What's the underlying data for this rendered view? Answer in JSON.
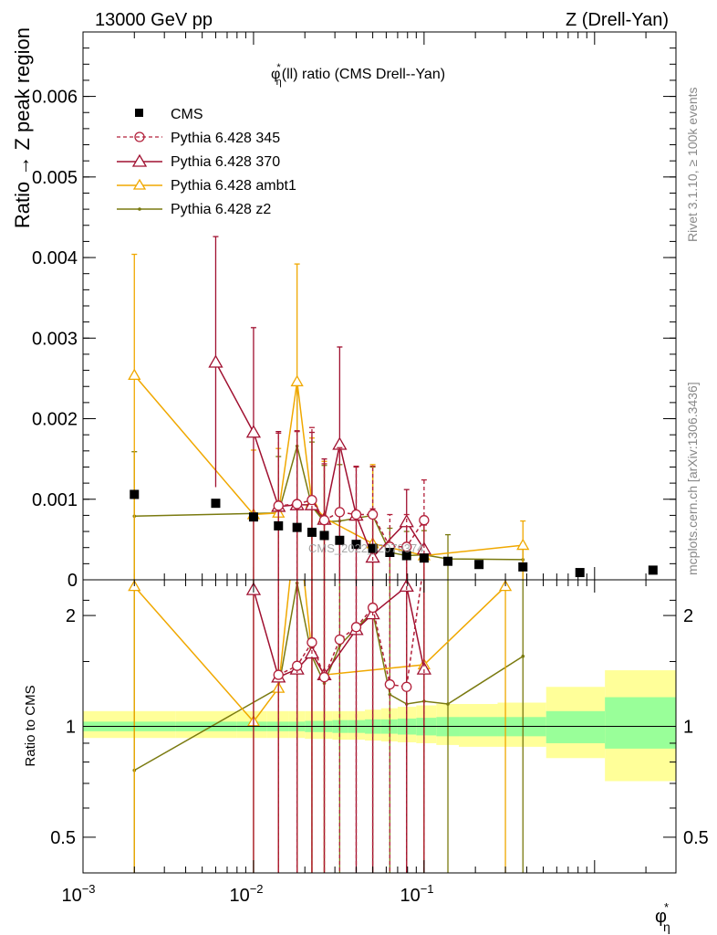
{
  "header": {
    "left": "13000 GeV pp",
    "right": "Z (Drell-Yan)"
  },
  "side_labels": {
    "rivet": "Rivet 3.1.10, ≥ 100k events",
    "mcplots": "mcplots.cern.ch [arXiv:1306.3436]"
  },
  "watermark": "CMS_2022_I2079374",
  "colors": {
    "cms": "#000000",
    "p345": "#b2203a",
    "p370": "#a01030",
    "ambt1": "#f0a800",
    "z2": "#7a7a10",
    "band_inner": "#99ff99",
    "band_outer": "#ffff99"
  },
  "chart_data": [
    {
      "type": "scatter",
      "panel": "main",
      "title_main": "φ",
      "title_sup": "*",
      "title_sub": "η",
      "title_rest": "(ll) ratio (CMS Drell--Yan)",
      "ylabel": "Ratio → Z peak region",
      "xscale": "log",
      "xlim": [
        0.001,
        3.0
      ],
      "ylim": [
        0,
        0.0068
      ],
      "xticks": [
        {
          "label": "10",
          "sup": "−3",
          "value": 0.001
        },
        {
          "label": "10",
          "sup": "−2",
          "value": 0.01
        },
        {
          "label": "10",
          "sup": "−1",
          "value": 0.1
        }
      ],
      "yticks": [
        {
          "label": "0",
          "value": 0
        },
        {
          "label": "0.001",
          "value": 0.001
        },
        {
          "label": "0.002",
          "value": 0.002
        },
        {
          "label": "0.003",
          "value": 0.003
        },
        {
          "label": "0.004",
          "value": 0.004
        },
        {
          "label": "0.005",
          "value": 0.005
        },
        {
          "label": "0.006",
          "value": 0.006
        }
      ],
      "legend_position": "top-left",
      "series": [
        {
          "key": "cms",
          "name": "CMS",
          "style": "marker",
          "x": [
            0.002,
            0.006,
            0.01,
            0.014,
            0.018,
            0.022,
            0.026,
            0.032,
            0.04,
            0.05,
            0.063,
            0.079,
            0.1,
            0.138,
            0.21,
            0.38,
            0.82,
            2.2
          ],
          "y": [
            0.00106,
            0.00095,
            0.00078,
            0.00067,
            0.00065,
            0.00059,
            0.00055,
            0.00049,
            0.00044,
            0.00039,
            0.00034,
            0.0003,
            0.00027,
            0.00023,
            0.00019,
            0.00016,
            9e-05,
            0.00012
          ]
        },
        {
          "key": "p345",
          "name": "Pythia 6.428 345",
          "style": "dashed-circle",
          "x": [
            0.014,
            0.018,
            0.022,
            0.026,
            0.032,
            0.04,
            0.05,
            0.063,
            0.079,
            0.1
          ],
          "y": [
            0.00092,
            0.00094,
            0.00099,
            0.00074,
            0.00084,
            0.00081,
            0.00081,
            0.00041,
            0.00041,
            0.00074
          ],
          "err_lo": [
            0.00092,
            0.00094,
            0.00099,
            0.00074,
            0.00084,
            0.00081,
            0.00081,
            0.00041,
            0.00041,
            0.00074
          ],
          "err_hi": [
            0.0009,
            0.0009,
            0.0009,
            0.0007,
            0.0008,
            0.0006,
            0.0006,
            0.0004,
            0.0004,
            0.0005
          ]
        },
        {
          "key": "p370",
          "name": "Pythia 6.428 370",
          "style": "solid-triangle",
          "x": [
            0.006,
            0.01,
            0.014,
            0.018,
            0.022,
            0.026,
            0.032,
            0.04,
            0.05,
            0.079,
            0.1
          ],
          "y": [
            0.0027,
            0.00183,
            0.00091,
            0.00093,
            0.00093,
            0.00075,
            0.00168,
            0.0008,
            0.00028,
            0.00072,
            0.00038
          ],
          "err_lo": [
            0.00155,
            0.00183,
            0.00091,
            0.00093,
            0.00093,
            0.00075,
            0.00168,
            0.0008,
            0.00028,
            0.00072,
            0.00038
          ],
          "err_hi": [
            0.00156,
            0.0013,
            0.00093,
            0.00092,
            0.0009,
            0.00075,
            0.00121,
            0.0006,
            0.0006,
            0.0004,
            0.0003
          ]
        },
        {
          "key": "ambt1",
          "name": "Pythia 6.428 ambt1",
          "style": "solid-triangle",
          "x": [
            0.002,
            0.01,
            0.014,
            0.018,
            0.022,
            0.026,
            0.05,
            0.1,
            0.38
          ],
          "y": [
            0.00254,
            0.00081,
            0.00083,
            0.00246,
            0.00096,
            0.00077,
            0.00045,
            0.0003,
            0.00043
          ],
          "err_lo": [
            0.00254,
            0.00081,
            0.00083,
            0.00246,
            0.00096,
            0.00077,
            0.00045,
            0.0003,
            0.00043
          ],
          "err_hi": [
            0.0015,
            0.0008,
            0.0008,
            0.00146,
            0.0008,
            0.0007,
            0.00098,
            0.0004,
            0.0003
          ]
        },
        {
          "key": "z2",
          "name": "Pythia 6.428 z2",
          "style": "solid-dot",
          "x": [
            0.002,
            0.014,
            0.018,
            0.022,
            0.026,
            0.032,
            0.05,
            0.063,
            0.079,
            0.1,
            0.138,
            0.38
          ],
          "y": [
            0.00079,
            0.00083,
            0.00166,
            0.00091,
            0.00072,
            0.00073,
            0.0008,
            0.00034,
            0.0003,
            0.00031,
            0.00026,
            0.00025
          ],
          "err_lo": [
            0.00079,
            0.00083,
            0.00166,
            0.00091,
            0.00072,
            0.00073,
            0.0008,
            0.00034,
            0.0003,
            0.00031,
            0.00026,
            0.00025
          ],
          "err_hi": [
            0.0008,
            0.0007,
            0.0008,
            0.0008,
            0.0007,
            0.0007,
            0.0006,
            0.0003,
            0.0003,
            0.0003,
            0.0003,
            0.0002
          ]
        }
      ]
    },
    {
      "type": "line",
      "panel": "ratio",
      "ylabel": "Ratio to CMS",
      "xlabel_main": "φ",
      "xlabel_sup": "*",
      "xlabel_sub": "η",
      "xscale": "log",
      "yscale": "log",
      "xlim": [
        0.001,
        3.0
      ],
      "ylim": [
        0.4,
        2.5
      ],
      "yticks": [
        {
          "label": "0.5",
          "value": 0.5
        },
        {
          "label": "1",
          "value": 1
        },
        {
          "label": "2",
          "value": 2
        }
      ],
      "reference_line": 1,
      "band": {
        "x_edges": [
          0.001,
          0.0035,
          0.008,
          0.012,
          0.016,
          0.02,
          0.024,
          0.029,
          0.036,
          0.045,
          0.056,
          0.07,
          0.09,
          0.118,
          0.16,
          0.27,
          0.52,
          1.15,
          3.0
        ],
        "inner_lo": [
          0.97,
          0.97,
          0.97,
          0.97,
          0.97,
          0.965,
          0.965,
          0.96,
          0.96,
          0.955,
          0.955,
          0.95,
          0.945,
          0.94,
          0.94,
          0.94,
          0.9,
          0.87
        ],
        "inner_hi": [
          1.03,
          1.03,
          1.03,
          1.03,
          1.03,
          1.035,
          1.035,
          1.04,
          1.04,
          1.045,
          1.045,
          1.05,
          1.055,
          1.06,
          1.06,
          1.06,
          1.1,
          1.2
        ],
        "outer_lo": [
          0.93,
          0.93,
          0.93,
          0.93,
          0.93,
          0.925,
          0.925,
          0.92,
          0.92,
          0.915,
          0.91,
          0.905,
          0.9,
          0.89,
          0.88,
          0.88,
          0.82,
          0.71
        ],
        "outer_hi": [
          1.1,
          1.1,
          1.1,
          1.1,
          1.1,
          1.1,
          1.1,
          1.1,
          1.1,
          1.11,
          1.12,
          1.13,
          1.14,
          1.15,
          1.15,
          1.16,
          1.28,
          1.42
        ]
      },
      "series": [
        {
          "key": "p345",
          "style": "dashed-circle",
          "x": [
            0.014,
            0.018,
            0.022,
            0.026,
            0.032,
            0.04,
            0.05,
            0.063,
            0.079,
            0.1
          ],
          "y": [
            1.38,
            1.46,
            1.69,
            1.36,
            1.72,
            1.86,
            2.1,
            1.3,
            1.28,
            2.8
          ],
          "err_lo": [
            1.38,
            1.46,
            1.69,
            1.36,
            1.72,
            1.86,
            2.1,
            1.3,
            1.28,
            2.8
          ],
          "err_hi": [
            1.5,
            1.5,
            1.5,
            1.5,
            1.5,
            1.5,
            1.5,
            1.5,
            1.5,
            1.5
          ]
        },
        {
          "key": "p370",
          "style": "solid-triangle",
          "x": [
            0.01,
            0.014,
            0.018,
            0.022,
            0.026,
            0.04,
            0.05,
            0.079,
            0.1
          ],
          "y": [
            2.35,
            1.36,
            1.43,
            1.58,
            1.38,
            1.83,
            2.02,
            2.4,
            1.43
          ],
          "err_lo": [
            2.35,
            1.36,
            1.43,
            1.58,
            1.38,
            1.83,
            2.02,
            2.4,
            1.43
          ],
          "err_hi": [
            1.5,
            1.5,
            1.5,
            1.5,
            1.5,
            1.5,
            1.5,
            1.5,
            1.5
          ]
        },
        {
          "key": "ambt1",
          "style": "solid-triangle",
          "x": [
            0.002,
            0.01,
            0.014,
            0.018,
            0.022,
            0.026,
            0.1,
            0.3
          ],
          "y": [
            2.4,
            1.03,
            1.27,
            3.8,
            1.58,
            1.38,
            1.47,
            2.4
          ],
          "err_lo": [
            2.4,
            1.03,
            1.27,
            3.8,
            1.58,
            1.38,
            1.47,
            2.4
          ],
          "err_hi": [
            1.5,
            1.5,
            1.5,
            1.5,
            1.5,
            1.5,
            1.5,
            1.5
          ]
        },
        {
          "key": "z2",
          "style": "solid-dot",
          "x": [
            0.002,
            0.014,
            0.018,
            0.022,
            0.026,
            0.032,
            0.05,
            0.063,
            0.079,
            0.1,
            0.138,
            0.38
          ],
          "y": [
            0.76,
            1.27,
            2.45,
            1.55,
            1.31,
            1.66,
            2.05,
            1.22,
            1.15,
            1.17,
            1.15,
            1.55
          ],
          "err_lo": [
            0.76,
            1.27,
            2.45,
            1.55,
            1.31,
            1.66,
            2.05,
            1.22,
            1.15,
            1.17,
            1.15,
            1.55
          ],
          "err_hi": [
            1.5,
            1.5,
            1.5,
            1.5,
            1.5,
            1.5,
            1.5,
            1.5,
            1.5,
            1.5,
            1.5,
            1.5
          ]
        }
      ]
    }
  ]
}
